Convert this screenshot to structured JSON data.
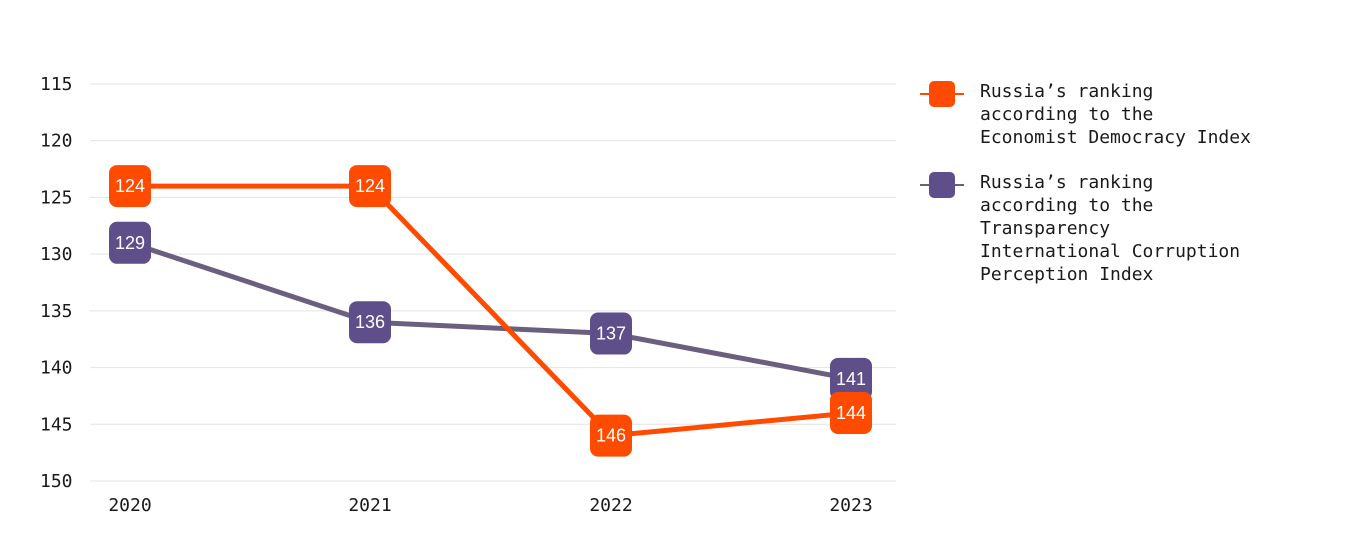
{
  "chart_data": {
    "type": "line",
    "title": "",
    "xlabel": "",
    "ylabel": "",
    "categories": [
      "2020",
      "2021",
      "2022",
      "2023"
    ],
    "ylim": [
      150,
      115
    ],
    "y_inverted": true,
    "y_ticks": [
      "115",
      "120",
      "125",
      "130",
      "135",
      "140",
      "145",
      "150"
    ],
    "grid": "horizontal",
    "legend_position": "right",
    "series": [
      {
        "name": "Russia’s ranking\naccording to the\nEconomist Democracy Index",
        "color": "#ff4b00",
        "values": [
          124,
          124,
          146,
          144
        ]
      },
      {
        "name": "Russia’s ranking\naccording to the\nTransparency\nInternational Corruption\nPerception Index",
        "color": "#5e4f8a",
        "line_color": "#6b5f7f",
        "values": [
          129,
          136,
          137,
          141
        ]
      }
    ]
  }
}
